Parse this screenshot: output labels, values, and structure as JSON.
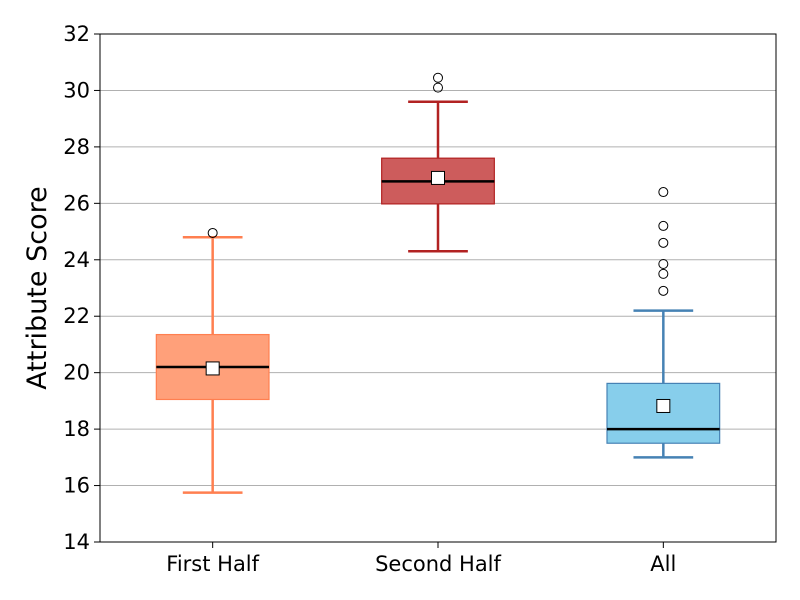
{
  "chart_data": {
    "type": "box",
    "ylabel": "Attribute Score",
    "xlabel": "",
    "title": "",
    "ylim": [
      14,
      32
    ],
    "yticks": [
      14,
      16,
      18,
      20,
      22,
      24,
      26,
      28,
      30,
      32
    ],
    "grid": "horizontal",
    "categories": [
      "First Half",
      "Second Half",
      "All"
    ],
    "boxes": [
      {
        "category": "First Half",
        "whisker_low": 15.75,
        "q1": 19.05,
        "median": 20.2,
        "mean": 20.15,
        "q3": 21.35,
        "whisker_high": 24.8,
        "outliers": [
          24.95
        ],
        "fill": "#ffa07a",
        "edge": "#ff7f50"
      },
      {
        "category": "Second Half",
        "whisker_low": 24.3,
        "q1": 25.98,
        "median": 26.78,
        "mean": 26.9,
        "q3": 27.6,
        "whisker_high": 29.6,
        "outliers": [
          30.1,
          30.45
        ],
        "fill": "#cd5c5c",
        "edge": "#b22222"
      },
      {
        "category": "All",
        "whisker_low": 17.0,
        "q1": 17.5,
        "median": 18.0,
        "mean": 18.82,
        "q3": 19.62,
        "whisker_high": 22.2,
        "outliers": [
          22.9,
          23.5,
          23.85,
          24.6,
          25.2,
          26.4
        ],
        "fill": "#87ceeb",
        "edge": "#4682b4"
      }
    ],
    "styles": {
      "median_color": "#000000",
      "mean_marker": "square",
      "mean_fill": "#ffffff",
      "grid_color": "#b0b0b0",
      "outlier_marker": "circle"
    }
  }
}
